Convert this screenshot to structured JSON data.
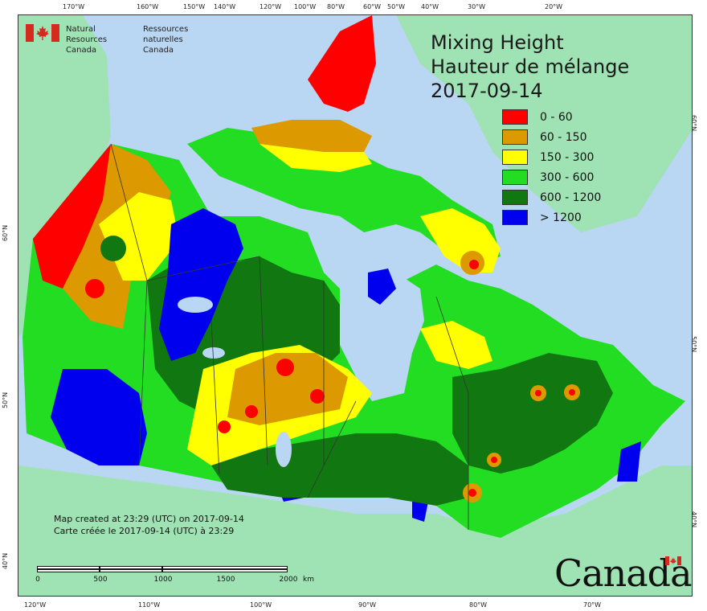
{
  "agency": {
    "en_line1": "Natural Resources",
    "en_line2": "Canada",
    "fr_line1": "Ressources naturelles",
    "fr_line2": "Canada"
  },
  "title": {
    "line1": "Mixing Height",
    "line2": "Hauteur de mélange",
    "date": "2017-09-14"
  },
  "legend": [
    {
      "label": "0 - 60",
      "color": "#ff0000"
    },
    {
      "label": "60 - 150",
      "color": "#dd9900"
    },
    {
      "label": "150 - 300",
      "color": "#ffff00"
    },
    {
      "label": "300 - 600",
      "color": "#22dd22"
    },
    {
      "label": "600 - 1200",
      "color": "#117711"
    },
    {
      "label": "> 1200",
      "color": "#0000ee"
    }
  ],
  "credit": {
    "en": "Map created at 23:29 (UTC) on 2017-09-14",
    "fr": "Carte créée le 2017-09-14 (UTC) à 23:29"
  },
  "scalebar": {
    "labels": [
      "0",
      "500",
      "1000",
      "1500",
      "2000",
      "km"
    ]
  },
  "wordmark": "Canada",
  "graticule": {
    "top": [
      "170°W",
      "160°W",
      "150°W",
      "140°W",
      "120°W",
      "100°W",
      "80°W",
      "60°W",
      "50°W",
      "40°W",
      "30°W",
      "20°W"
    ],
    "bottom": [
      "120°W",
      "110°W",
      "100°W",
      "90°W",
      "80°W",
      "70°W"
    ],
    "left": [
      "60°N",
      "50°N",
      "40°N"
    ],
    "right": [
      "60°N",
      "50°N",
      "40°N"
    ]
  },
  "colors": {
    "ocean": "#b9d6f2",
    "land_outside": "#9fe3b4",
    "lakes": "#b9d6f2"
  }
}
